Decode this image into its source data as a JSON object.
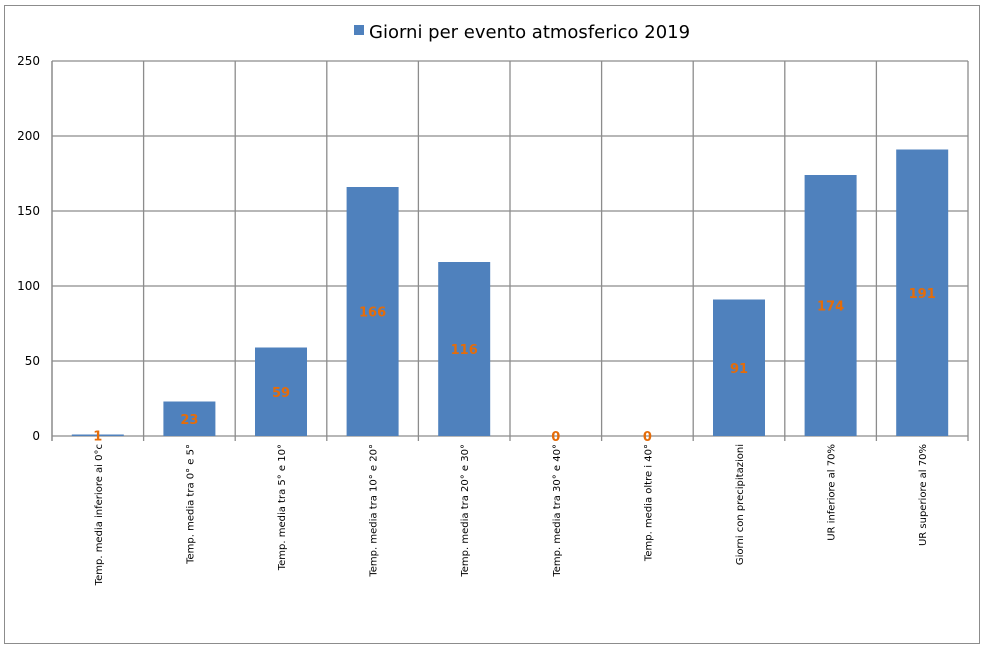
{
  "chart_data": {
    "type": "bar",
    "categories": [
      "Temp. media inferiore ai 0°c",
      "Temp. media tra 0° e 5°",
      "Temp. media tra 5° e 10°",
      "Temp. media tra 10° e 20°",
      "Temp. media tra 20° e 30°",
      "Temp. media tra 30° e 40°",
      "Temp. media oltre i 40°",
      "Giorni con precipitazioni",
      "UR inferiore al 70%",
      "UR superiore al 70%"
    ],
    "series": [
      {
        "name": "Giorni per evento atmosferico 2019",
        "values": [
          1,
          23,
          59,
          166,
          116,
          0,
          0,
          91,
          174,
          191
        ],
        "color": "#4f81bd"
      }
    ],
    "data_labels": [
      "1",
      "23",
      "59",
      "166",
      "116",
      "0",
      "0",
      "91",
      "174",
      "191"
    ],
    "yticks": [
      "0",
      "50",
      "100",
      "150",
      "200",
      "250"
    ],
    "ylim": [
      0,
      250
    ],
    "grid": true,
    "legend_position": "top",
    "title": "",
    "xlabel": "",
    "ylabel": "",
    "label_color": "#e46c0a",
    "grid_color": "#8c8c8c"
  }
}
